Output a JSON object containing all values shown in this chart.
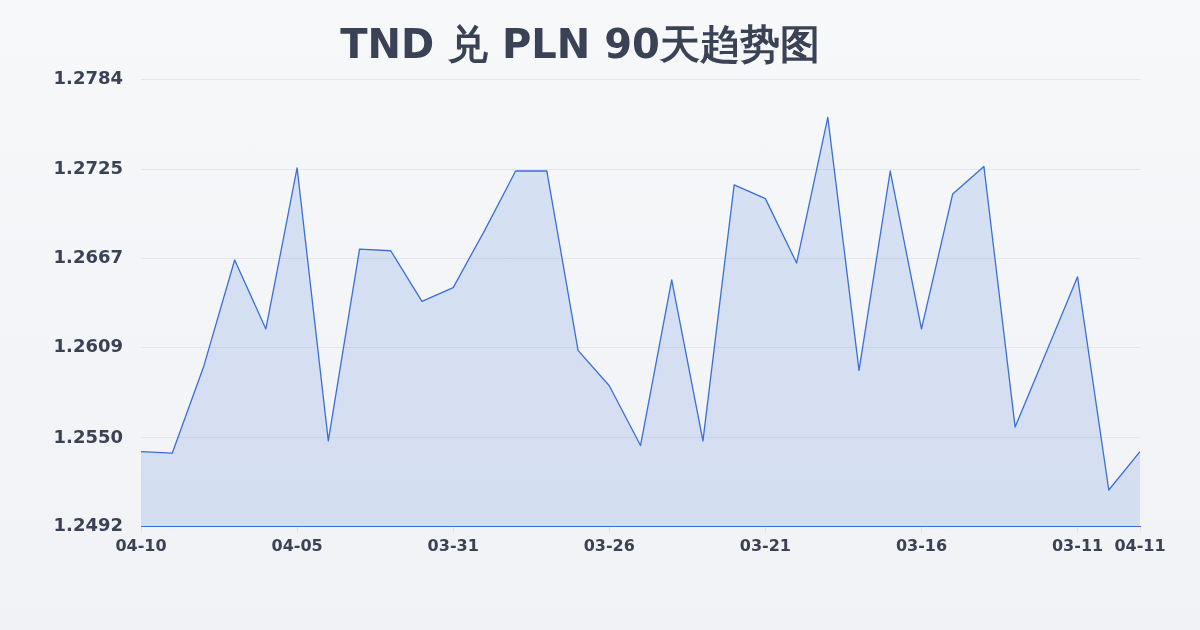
{
  "chart_data": {
    "type": "area",
    "title": "TND 兑 PLN 90天趋势图",
    "categories": [
      "04-10",
      null,
      null,
      null,
      null,
      "04-05",
      null,
      null,
      null,
      null,
      "03-31",
      null,
      null,
      null,
      null,
      "03-26",
      null,
      null,
      null,
      null,
      "03-21",
      null,
      null,
      null,
      null,
      "03-16",
      null,
      null,
      null,
      null,
      "03-11",
      null,
      "04-11"
    ],
    "values": [
      1.2541,
      1.254,
      1.2596,
      1.2666,
      1.2621,
      1.2726,
      1.2548,
      1.2673,
      1.2672,
      1.2639,
      1.2648,
      1.2685,
      1.2724,
      1.2724,
      1.2607,
      1.2584,
      1.2545,
      1.2653,
      1.2548,
      1.2715,
      1.2706,
      1.2664,
      1.2759,
      1.2594,
      1.2724,
      1.2621,
      1.2709,
      1.2727,
      1.2557,
      1.2606,
      1.2655,
      1.2516,
      1.2541
    ],
    "color": "#3a6fd8",
    "ylim": [
      1.2492,
      1.2784
    ],
    "yticks": [
      1.2492,
      {
        "value": 1.255,
        "label": "1.2550"
      },
      1.2609,
      1.2667,
      1.2725,
      1.2784
    ],
    "grid": "y",
    "legend": false
  }
}
